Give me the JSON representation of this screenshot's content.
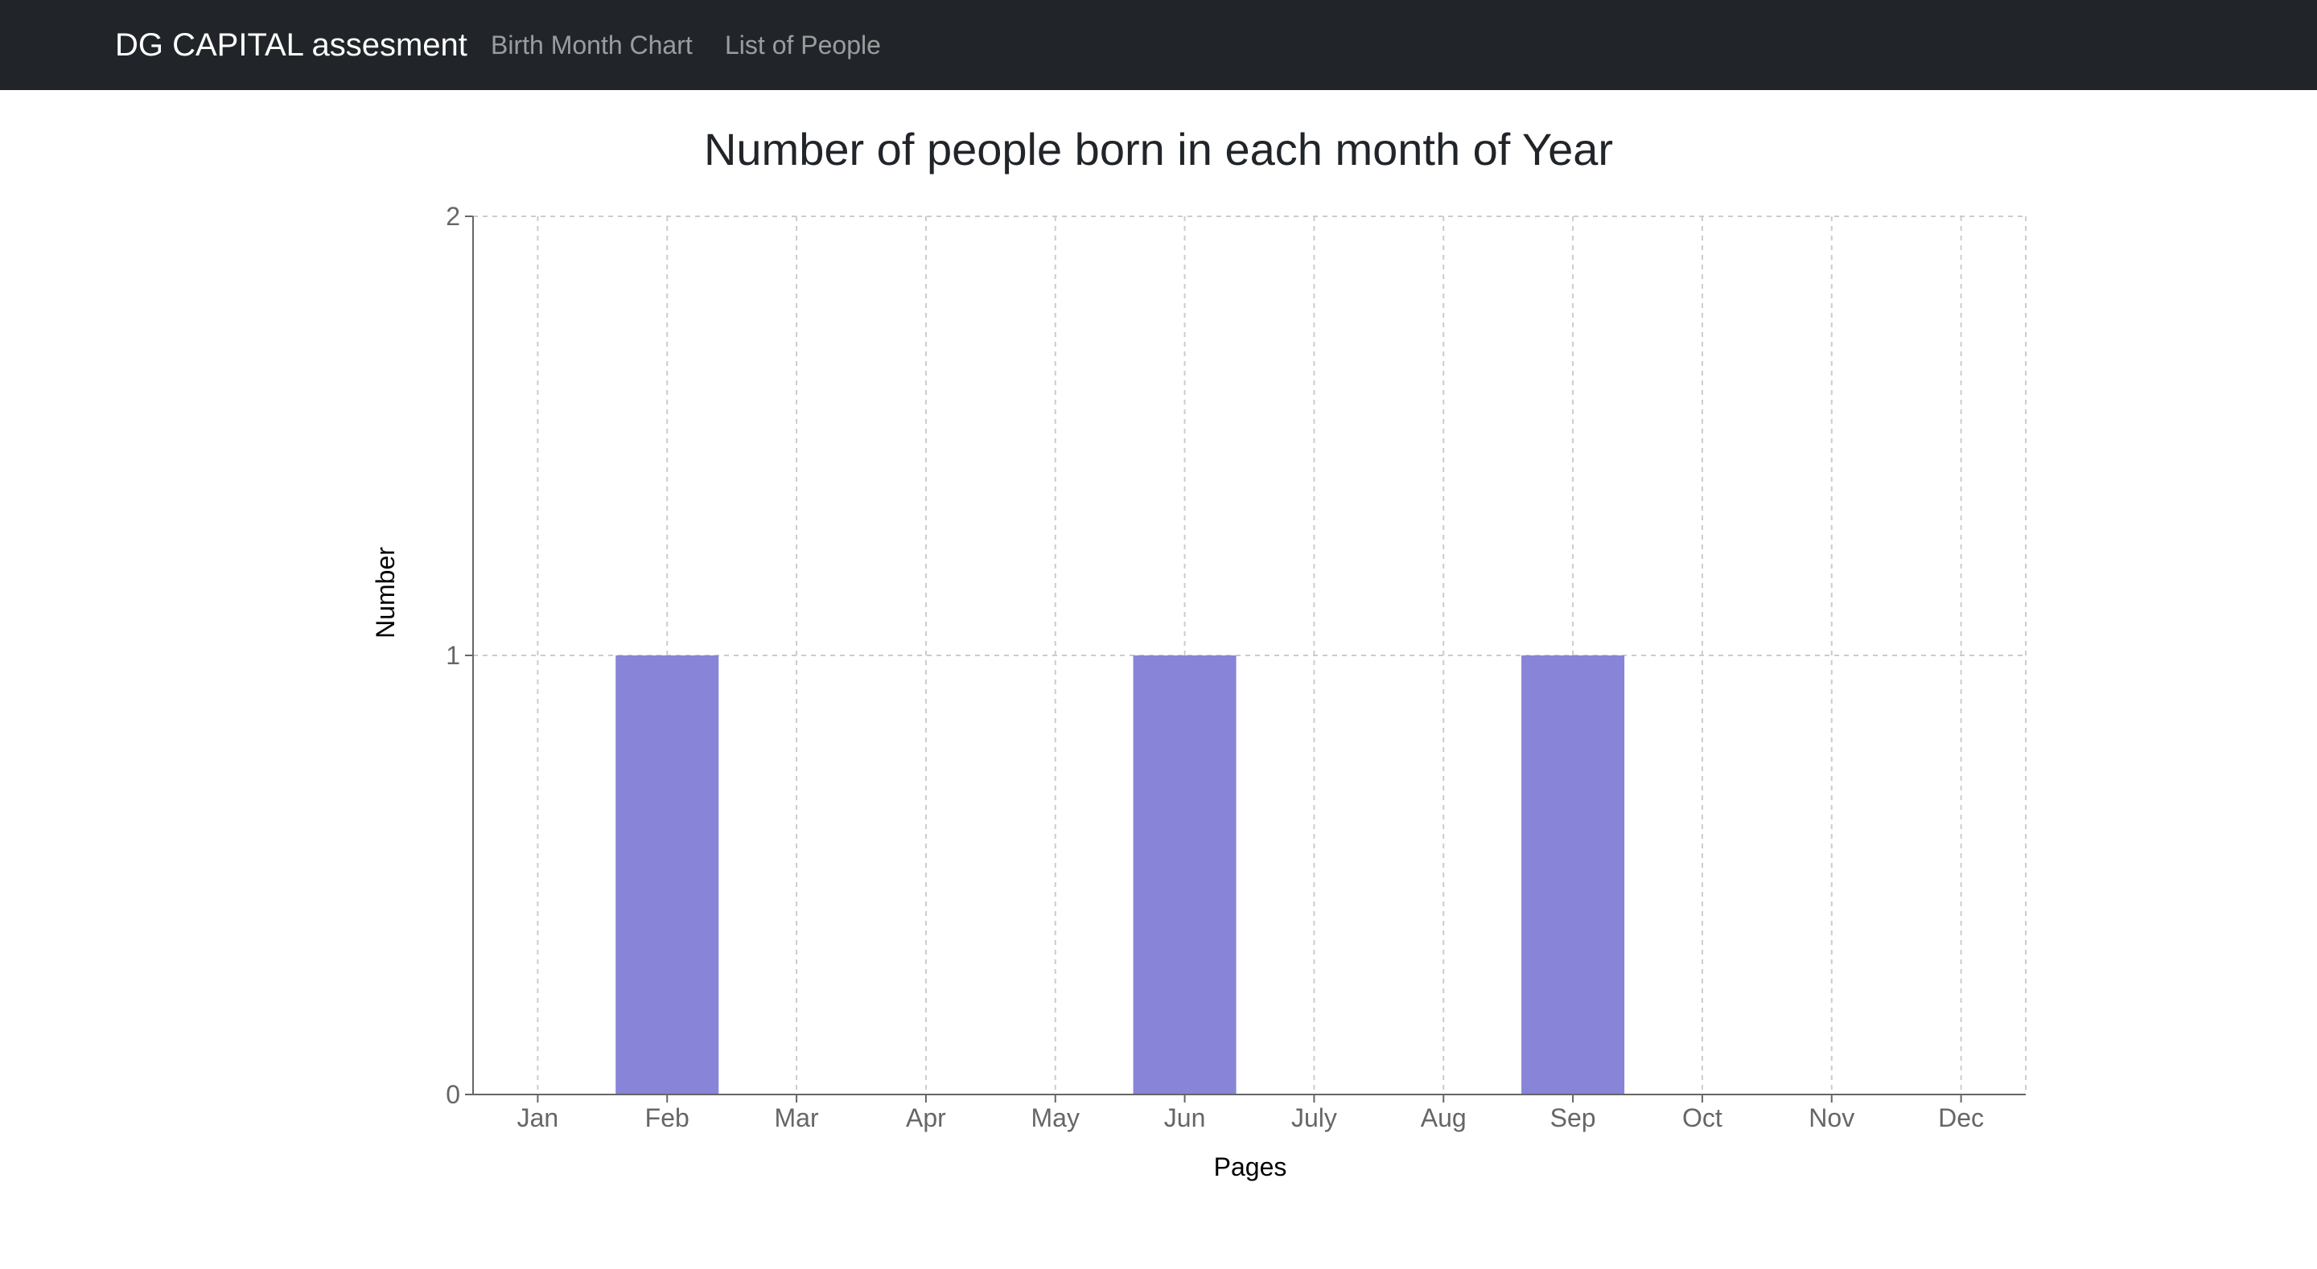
{
  "navbar": {
    "brand": "DG CAPITAL assesment",
    "links": [
      {
        "label": "Birth Month Chart"
      },
      {
        "label": "List of People"
      }
    ]
  },
  "colors": {
    "navbar_bg": "#212529",
    "bar_fill": "#8884d8",
    "grid": "#cccccc"
  },
  "chart_data": {
    "type": "bar",
    "title": "Number of people born in each month of Year",
    "xlabel": "Pages",
    "ylabel": "Number",
    "categories": [
      "Jan",
      "Feb",
      "Mar",
      "Apr",
      "May",
      "Jun",
      "July",
      "Aug",
      "Sep",
      "Oct",
      "Nov",
      "Dec"
    ],
    "values": [
      0,
      1,
      0,
      0,
      0,
      1,
      0,
      0,
      1,
      0,
      0,
      0
    ],
    "ylim": [
      0,
      2
    ],
    "yticks": [
      "0",
      "1",
      "2"
    ],
    "grid": true,
    "grid_style": "dashed"
  }
}
